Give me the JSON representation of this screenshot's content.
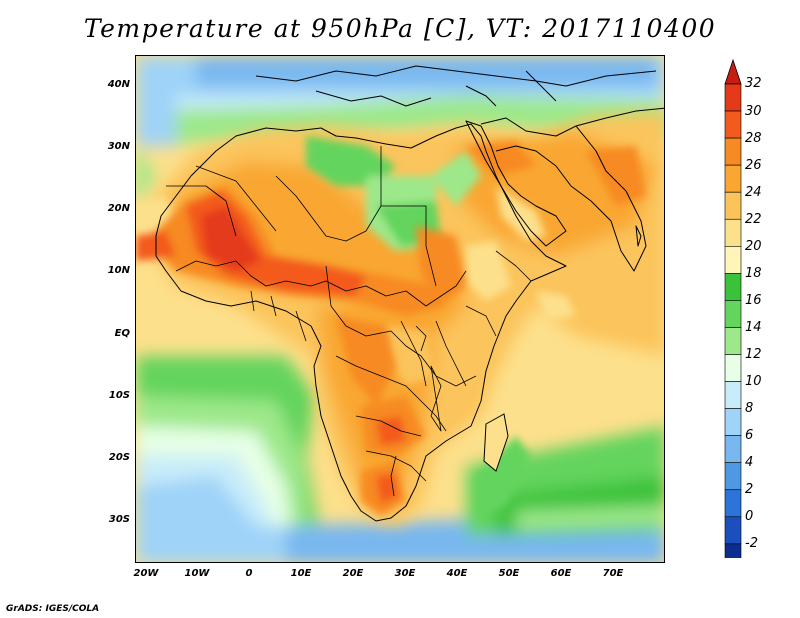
{
  "title": "Temperature at 950hPa [C], VT: 2017110400",
  "credit": "GrADS: IGES/COLA",
  "lat_ticks": [
    "40N",
    "30N",
    "20N",
    "10N",
    "EQ",
    "10S",
    "20S",
    "30S"
  ],
  "lon_ticks": [
    "20W",
    "10W",
    "0",
    "10E",
    "20E",
    "30E",
    "40E",
    "50E",
    "60E",
    "70E"
  ],
  "colorbar": {
    "labels": [
      "32",
      "30",
      "28",
      "26",
      "24",
      "22",
      "20",
      "18",
      "16",
      "14",
      "12",
      "10",
      "8",
      "6",
      "4",
      "2",
      "0",
      "-2"
    ],
    "colors_top_to_bottom": [
      "#e43a1a",
      "#f35a1d",
      "#f78a22",
      "#f9a732",
      "#fbc45b",
      "#fde08c",
      "#fff5b8",
      "#3ac23a",
      "#63d45d",
      "#9de88a",
      "#e6ffe6",
      "#c8ecfa",
      "#9fd3f8",
      "#78b7f0",
      "#4f98e4",
      "#2c74d8",
      "#1c4fbe",
      "#0c2d8e"
    ],
    "top_arrow_color": "#c81e12",
    "bottom_arrow_color": "#d7d4fb"
  }
}
